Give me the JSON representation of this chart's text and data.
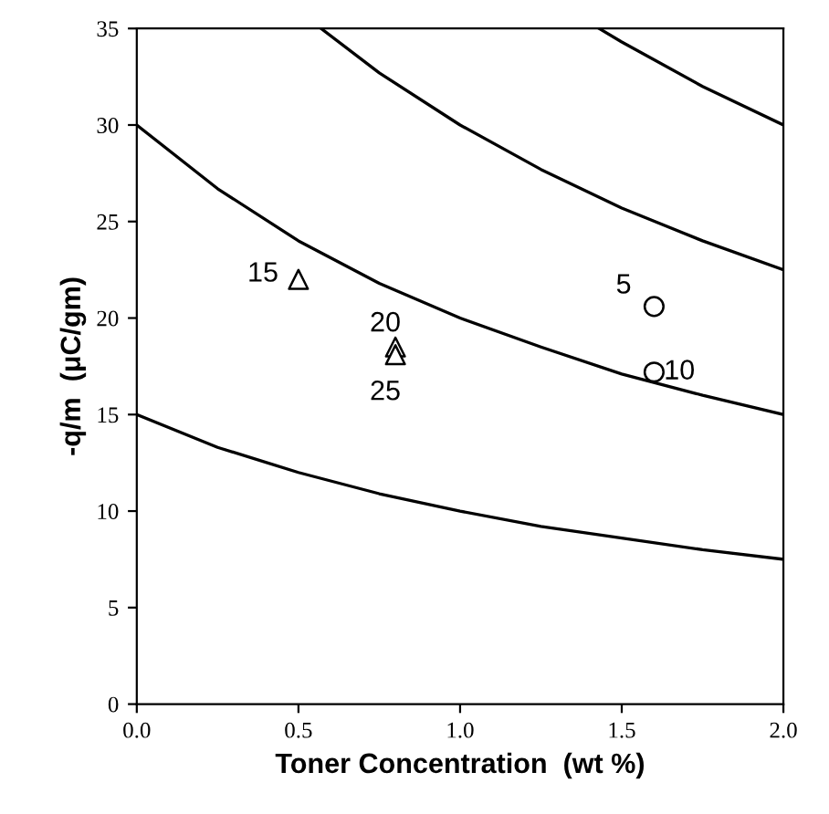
{
  "chart_data": {
    "type": "line",
    "xlabel": "Toner Concentration  (wt %)",
    "ylabel": "-q/m  (μC/gm)",
    "xlim": [
      0,
      2
    ],
    "ylim": [
      0,
      35
    ],
    "xticks": [
      {
        "value": 0,
        "label": "0.0"
      },
      {
        "value": 0.5,
        "label": "0.5"
      },
      {
        "value": 1,
        "label": "1.0"
      },
      {
        "value": 1.5,
        "label": "1.5"
      },
      {
        "value": 2,
        "label": "2.0"
      }
    ],
    "yticks": [
      0,
      5,
      10,
      15,
      20,
      25,
      30,
      35
    ],
    "series": [
      {
        "color": "#000000",
        "x": [
          0,
          0.25,
          0.5,
          0.75,
          1,
          1.25,
          1.5,
          1.75,
          2
        ],
        "values": [
          15,
          13.3,
          12,
          10.9,
          10,
          9.2,
          8.6,
          8,
          7.5
        ]
      },
      {
        "color": "#000000",
        "x": [
          0,
          0.25,
          0.5,
          0.75,
          1,
          1.25,
          1.5,
          1.75,
          2
        ],
        "values": [
          30,
          26.7,
          24,
          21.8,
          20,
          18.5,
          17.1,
          16,
          15
        ]
      },
      {
        "color": "#000000",
        "x": [
          0.57,
          0.75,
          1,
          1.25,
          1.5,
          1.75,
          2
        ],
        "values": [
          35,
          32.7,
          30,
          27.7,
          25.7,
          24,
          22.5
        ]
      },
      {
        "color": "#000000",
        "x": [
          1.43,
          1.5,
          1.75,
          2
        ],
        "values": [
          35,
          34.3,
          32,
          30
        ]
      },
      {
        "type": "scatter",
        "marker": "triangle",
        "color": "#000000",
        "x": [
          0.5,
          0.8,
          0.8
        ],
        "values": [
          22,
          18.5,
          18.1
        ]
      },
      {
        "type": "scatter",
        "marker": "circle",
        "color": "#000000",
        "x": [
          1.6,
          1.6
        ],
        "values": [
          20.6,
          17.2
        ]
      }
    ],
    "annotations": [
      {
        "text": "15",
        "x": 0.5,
        "y": 22
      },
      {
        "text": "20",
        "x": 0.8,
        "y": 18.5
      },
      {
        "text": "25",
        "x": 0.8,
        "y": 18.1
      },
      {
        "text": "5",
        "x": 1.6,
        "y": 20.6
      },
      {
        "text": "10",
        "x": 1.6,
        "y": 17.2
      }
    ],
    "grid": false,
    "legend": false
  }
}
